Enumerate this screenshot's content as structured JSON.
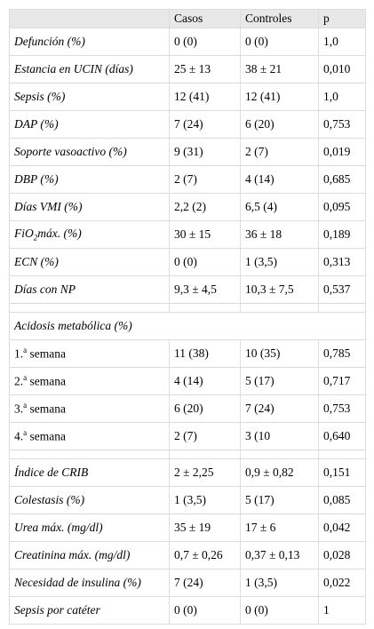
{
  "header": {
    "columns": [
      "Casos",
      "Controles",
      "p"
    ]
  },
  "groups": [
    {
      "label_style": "italic",
      "rows": [
        {
          "label": "Defunción (%)",
          "values": [
            "0 (0)",
            "0 (0)",
            "1,0"
          ]
        },
        {
          "label": "Estancia en UCIN (días)",
          "values": [
            "25 ± 13",
            "38 ± 21",
            "0,010"
          ]
        },
        {
          "label": "Sepsis (%)",
          "values": [
            "12 (41)",
            "12 (41)",
            "1,0"
          ]
        },
        {
          "label": "DAP (%)",
          "values": [
            "7 (24)",
            "6 (20)",
            "0,753"
          ]
        },
        {
          "label": "Soporte vasoactivo (%)",
          "values": [
            "9 (31)",
            "2 (7)",
            "0,019"
          ]
        },
        {
          "label": "DBP (%)",
          "values": [
            "2 (7)",
            "4 (14)",
            "0,685"
          ]
        },
        {
          "label": "Días VMI (%)",
          "values": [
            "2,2 (2)",
            "6,5 (4)",
            "0,095"
          ]
        },
        {
          "label": [
            "FiO",
            "2",
            "máx. (%)"
          ],
          "label_format": [
            "normal",
            "sub",
            "normal"
          ],
          "values": [
            "30 ± 15",
            "36 ± 18",
            "0,189"
          ]
        },
        {
          "label": "ECN (%)",
          "values": [
            "0 (0)",
            "1 (3,5)",
            "0,313"
          ]
        },
        {
          "label": "Días con NP",
          "values": [
            "9,3 ± 4,5",
            "10,3 ± 7,5",
            "0,537"
          ]
        }
      ]
    },
    {
      "title": "Acidosis metabólica (%)",
      "label_style": "normal",
      "rows": [
        {
          "label": [
            "1.",
            "a",
            " semana"
          ],
          "label_format": [
            "normal",
            "sup",
            "normal"
          ],
          "values": [
            "11 (38)",
            "10 (35)",
            "0,785"
          ]
        },
        {
          "label": [
            "2.",
            "a",
            " semana"
          ],
          "label_format": [
            "normal",
            "sup",
            "normal"
          ],
          "values": [
            "4 (14)",
            "5 (17)",
            "0,717"
          ]
        },
        {
          "label": [
            "3.",
            "a",
            " semana"
          ],
          "label_format": [
            "normal",
            "sup",
            "normal"
          ],
          "values": [
            "6 (20)",
            "7 (24)",
            "0,753"
          ]
        },
        {
          "label": [
            "4.",
            "a",
            " semana"
          ],
          "label_format": [
            "normal",
            "sup",
            "normal"
          ],
          "values": [
            "2 (7)",
            "3 (10",
            "0,640"
          ]
        }
      ]
    },
    {
      "label_style": "italic",
      "rows": [
        {
          "label": "Índice de CRIB",
          "values": [
            "2 ± 2,25",
            "0,9 ± 0,82",
            "0,151"
          ]
        },
        {
          "label": "Colestasis (%)",
          "values": [
            "1 (3,5)",
            "5 (17)",
            "0,085"
          ]
        },
        {
          "label": "Urea máx. (mg/dl)",
          "values": [
            "35 ± 19",
            "17 ± 6",
            "0,042"
          ]
        },
        {
          "label": "Creatinina máx. (mg/dl)",
          "values": [
            "0,7 ± 0,26",
            "0,37 ± 0,13",
            "0,028"
          ]
        },
        {
          "label": "Necesidad de insulina (%)",
          "values": [
            "7 (24)",
            "1 (3,5)",
            "0,022"
          ]
        },
        {
          "label": "Sepsis por catéter",
          "values": [
            "0 (0)",
            "0 (0)",
            "1"
          ]
        }
      ]
    }
  ]
}
